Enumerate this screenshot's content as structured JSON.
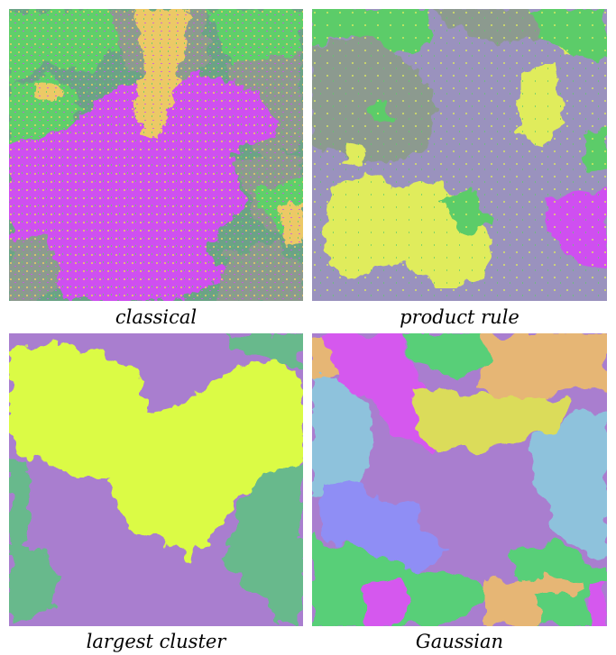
{
  "figure": {
    "panels": [
      {
        "caption": "classical",
        "colors": {
          "green": "#5fcf6a",
          "gray": "#8c9a8f",
          "yellow": "#ecc966",
          "magenta": "#cf4ff0",
          "greygreen": "#6ba386"
        }
      },
      {
        "caption": "product rule",
        "colors": {
          "lavender": "#9a92be",
          "yellow": "#e0ec5c",
          "green": "#5ccc69",
          "magenta": "#cf4ff0",
          "gray": "#8c9a8f"
        }
      },
      {
        "caption": "largest cluster",
        "colors": {
          "purple": "#a97ecf",
          "lime": "#dbfb45",
          "green": "#67b98c"
        }
      },
      {
        "caption": "Gaussian",
        "colors": {
          "magenta": "#d558ee",
          "orange": "#e6b674",
          "green": "#58cf78",
          "sky": "#8ec2dc",
          "purple": "#a97ecf",
          "yellow": "#dbdc5a",
          "blue": "#8f8ef5"
        }
      }
    ]
  }
}
